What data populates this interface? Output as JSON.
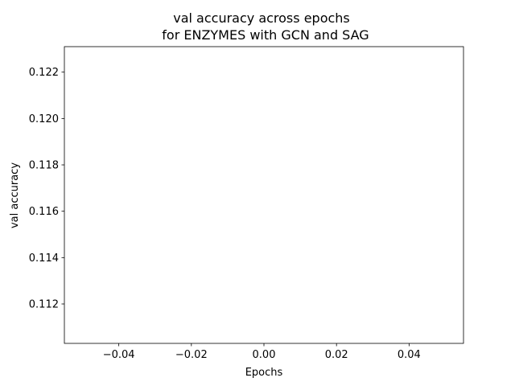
{
  "chart_data": {
    "type": "line",
    "title": "val accuracy across epochs",
    "subtitle": "for ENZYMES with GCN and SAG",
    "xlabel": "Epochs",
    "ylabel": "val accuracy",
    "xlim": [
      -0.055,
      0.055
    ],
    "ylim": [
      0.1103,
      0.1231
    ],
    "x_ticks": [
      -0.04,
      -0.02,
      0.0,
      0.02,
      0.04
    ],
    "x_tick_labels": [
      "−0.04",
      "−0.02",
      "0.00",
      "0.02",
      "0.04"
    ],
    "y_ticks": [
      0.112,
      0.114,
      0.116,
      0.118,
      0.12,
      0.122
    ],
    "y_tick_labels": [
      "0.112",
      "0.114",
      "0.116",
      "0.118",
      "0.120",
      "0.122"
    ],
    "grid": false,
    "legend": "none",
    "series": [
      {
        "x": [],
        "y": []
      }
    ]
  }
}
